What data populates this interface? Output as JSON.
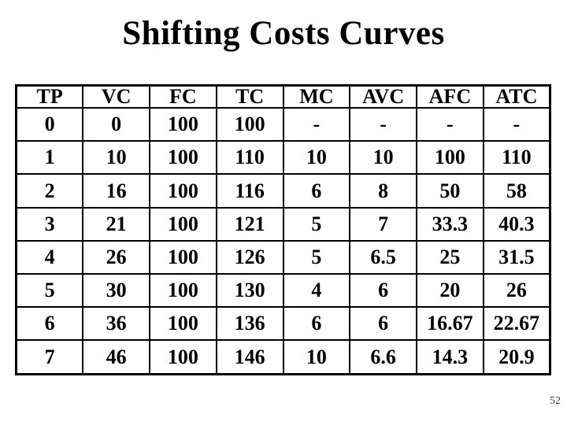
{
  "title": "Shifting Costs Curves",
  "page_number": "52",
  "colors": {
    "background": "#ffffff",
    "text": "#000000",
    "table_border": "#000000",
    "page_number": "#3d3d3d"
  },
  "chart_data": {
    "type": "table",
    "title": "Shifting Costs Curves",
    "columns": [
      "TP",
      "VC",
      "FC",
      "TC",
      "MC",
      "AVC",
      "AFC",
      "ATC"
    ],
    "rows": [
      [
        "0",
        "0",
        "100",
        "100",
        "-",
        "-",
        "-",
        "-"
      ],
      [
        "1",
        "10",
        "100",
        "110",
        "10",
        "10",
        "100",
        "110"
      ],
      [
        "2",
        "16",
        "100",
        "116",
        "6",
        "8",
        "50",
        "58"
      ],
      [
        "3",
        "21",
        "100",
        "121",
        "5",
        "7",
        "33.3",
        "40.3"
      ],
      [
        "4",
        "26",
        "100",
        "126",
        "5",
        "6.5",
        "25",
        "31.5"
      ],
      [
        "5",
        "30",
        "100",
        "130",
        "4",
        "6",
        "20",
        "26"
      ],
      [
        "6",
        "36",
        "100",
        "136",
        "6",
        "6",
        "16.67",
        "22.67"
      ],
      [
        "7",
        "46",
        "100",
        "146",
        "10",
        "6.6",
        "14.3",
        "20.9"
      ]
    ]
  }
}
